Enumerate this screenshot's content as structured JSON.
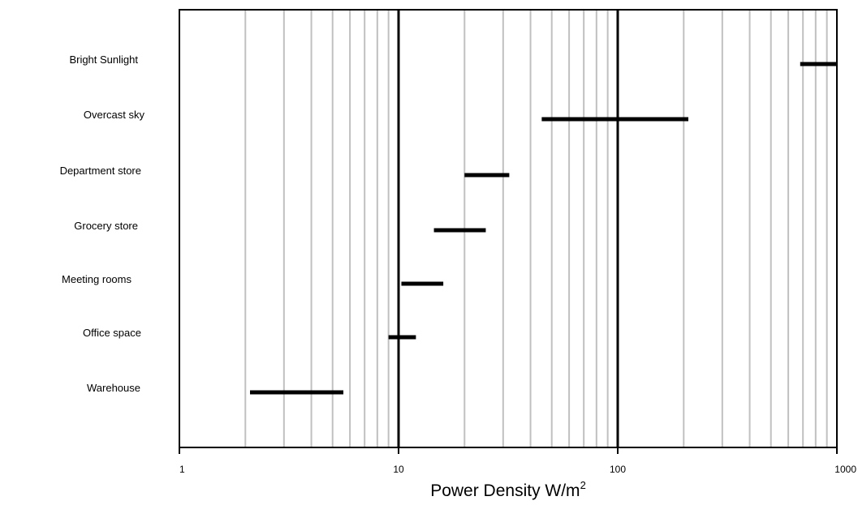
{
  "chart_data": {
    "type": "bar",
    "orientation": "horizontal-range",
    "xscale": "log",
    "xlim": [
      1,
      1000
    ],
    "xlabel": "Power Density W/m",
    "xlabel_superscript": "2",
    "xticks": [
      1,
      10,
      100,
      1000
    ],
    "xtick_labels": [
      "1",
      "10",
      "100",
      "1000"
    ],
    "grid": "vertical minor log lines",
    "colors": {
      "bar": "#000000",
      "grid_minor": "#c0c0c0",
      "grid_major": "#000000"
    },
    "categories": [
      "Bright Sunlight",
      "Overcast sky",
      "Department store",
      "Grocery store",
      "Meeting rooms",
      "Office space",
      "Warehouse"
    ],
    "series": [
      {
        "ranges": [
          [
            680,
            1000
          ],
          [
            45,
            210
          ],
          [
            20,
            32
          ],
          [
            14.5,
            25
          ],
          [
            10.3,
            16
          ],
          [
            9,
            12
          ],
          [
            2.1,
            5.6
          ]
        ]
      }
    ]
  }
}
